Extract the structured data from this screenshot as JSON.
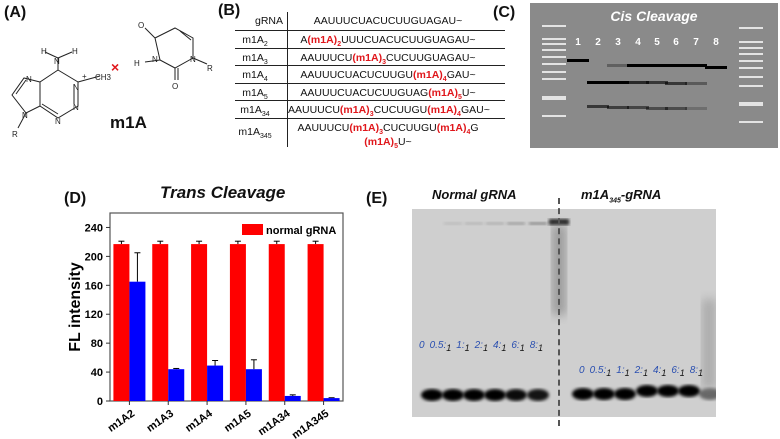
{
  "panels": {
    "a": "(A)",
    "b": "(B)",
    "c": "(C)",
    "d": "(D)",
    "e": "(E)"
  },
  "structure": {
    "name": "m1A",
    "atoms": {
      "h": "H",
      "n": "N",
      "o": "O",
      "r": "R",
      "ch3": "CH3",
      "plus": "+"
    },
    "mismatch_color": "#e0161b"
  },
  "table": {
    "header": [
      "gRNA",
      "AAUUUCUACUCUUGUAGAU~"
    ],
    "rows": [
      {
        "name": "m1A",
        "sub": "2",
        "seq": [
          [
            "A",
            ""
          ],
          [
            "(m1A)",
            "2"
          ],
          [
            "UUUCUACUCUUGUAGAU~",
            ""
          ]
        ]
      },
      {
        "name": "m1A",
        "sub": "3",
        "seq": [
          [
            "AAUUUCU",
            ""
          ],
          [
            "(m1A)",
            "3"
          ],
          [
            "CUCUUGUAGAU~",
            ""
          ]
        ]
      },
      {
        "name": "m1A",
        "sub": "4",
        "seq": [
          [
            "AAUUUCUACUCUUGU",
            ""
          ],
          [
            "(m1A)",
            "4"
          ],
          [
            "GAU~",
            ""
          ]
        ]
      },
      {
        "name": "m1A",
        "sub": "5",
        "seq": [
          [
            "AAUUUCUACUCUUGUAG",
            ""
          ],
          [
            "(m1A)",
            "5"
          ],
          [
            "U~",
            ""
          ]
        ]
      },
      {
        "name": "m1A",
        "sub": "34",
        "seq": [
          [
            "AAUUUCU",
            ""
          ],
          [
            "(m1A)",
            "3"
          ],
          [
            "CUCUUGU",
            ""
          ],
          [
            "(m1A)",
            "4"
          ],
          [
            "GAU~",
            ""
          ]
        ]
      },
      {
        "name": "m1A",
        "sub": "345",
        "seq": [
          [
            "AAUUUCU",
            ""
          ],
          [
            "(m1A)",
            "3"
          ],
          [
            "CUCUUGU",
            ""
          ],
          [
            "(m1A)",
            "4"
          ],
          [
            "G",
            ""
          ]
        ],
        "seq2": [
          [
            "(m1A)",
            "5"
          ],
          [
            "U~",
            ""
          ]
        ]
      }
    ]
  },
  "gel_c": {
    "title": "Cis Cleavage",
    "lanes": [
      "1",
      "2",
      "3",
      "4",
      "5",
      "6",
      "7",
      "8"
    ]
  },
  "chart_data": {
    "type": "bar",
    "title": "Trans Cleavage",
    "xlabel": "",
    "ylabel": "FL intensity",
    "categories": [
      "m1A2",
      "m1A3",
      "m1A4",
      "m1A5",
      "m1A34",
      "m1A345"
    ],
    "ylim": [
      0,
      260
    ],
    "yticks": [
      0,
      40,
      80,
      120,
      160,
      200,
      240
    ],
    "series": [
      {
        "name": "normal gRNA",
        "color": "#ff0000",
        "values": [
          217,
          217,
          217,
          217,
          217,
          217
        ],
        "errors": [
          4,
          4,
          4,
          4,
          4,
          4
        ]
      },
      {
        "color": "#0000ff",
        "values": [
          165,
          44,
          49,
          44,
          7,
          4
        ],
        "errors": [
          40,
          1,
          7,
          13,
          1.5,
          0.5
        ]
      }
    ],
    "legend": "top-right",
    "grid": false
  },
  "gel_e": {
    "left_title": "Normal gRNA",
    "right_title_main": "m1A",
    "right_title_sub": "345",
    "right_title_tail": "-gRNA",
    "ratios": [
      [
        "0",
        ""
      ],
      [
        "0.5:",
        "1"
      ],
      [
        "1:",
        "1"
      ],
      [
        "2:",
        "1"
      ],
      [
        "4:",
        "1"
      ],
      [
        "6:",
        "1"
      ],
      [
        "8:",
        "1"
      ]
    ],
    "ratio_color": "#2a4fb0"
  }
}
